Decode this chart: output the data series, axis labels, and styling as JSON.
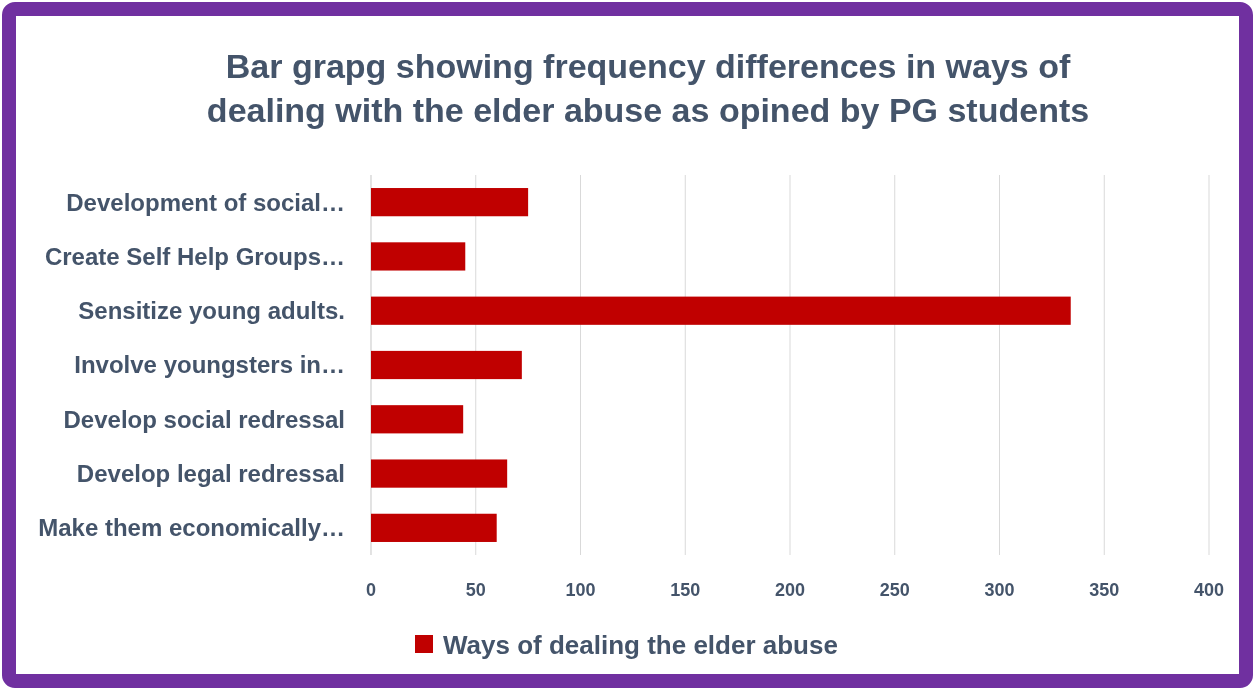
{
  "chart_data": {
    "type": "bar",
    "orientation": "horizontal",
    "title": "Bar grapg showing frequency differences in ways of\ndealing with the elder abuse as opined by PG students",
    "categories": [
      "Development of social…",
      "Create Self Help Groups…",
      "Sensitize young adults.",
      "Involve youngsters in…",
      "Develop social redressal",
      "Develop legal redressal",
      "Make them economically…"
    ],
    "series": [
      {
        "name": "Ways of dealing the elder abuse",
        "color": "#c00000",
        "values": [
          75,
          45,
          334,
          72,
          44,
          65,
          60
        ]
      }
    ],
    "xlim": [
      0,
      400
    ],
    "xticks": [
      0,
      50,
      100,
      150,
      200,
      250,
      300,
      350,
      400
    ],
    "grid": "x",
    "legend": "bottom"
  }
}
